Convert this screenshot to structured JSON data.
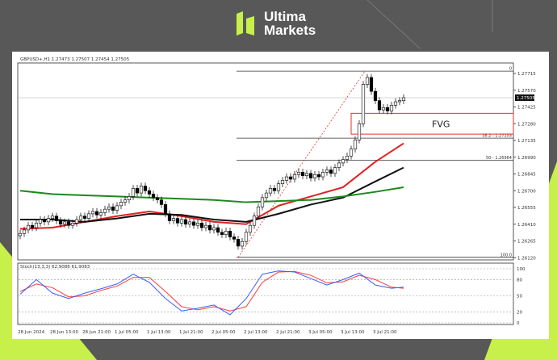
{
  "brand": {
    "line1": "Ultima",
    "line2": "Markets",
    "accent": "#c8f04a"
  },
  "chart_data": {
    "type": "candlestick",
    "header": "GBPUSD+,H1  1.27473 1.27507 1.27454 1.27505",
    "time_labels": [
      "28 Jun 2024",
      "28 Jun 13:00",
      "28 Jun 21:00",
      "1 Jul 05:00",
      "1 Jul 13:00",
      "1 Jul 21:00",
      "2 Jul 05:00",
      "2 Jul 13:00",
      "2 Jul 21:00",
      "3 Jul 05:00",
      "3 Jul 13:00",
      "3 Jul 21:00"
    ],
    "price_ticks": [
      "1.27715",
      "1.27570",
      "1.27425",
      "1.27280",
      "1.27135",
      "1.26990",
      "1.26845",
      "1.26700",
      "1.26555",
      "1.26410",
      "1.26265",
      "1.26120"
    ],
    "ylim": [
      1.261,
      1.278
    ],
    "current_price": "1.27505",
    "closes": [
      1.2633,
      1.2636,
      1.264,
      1.2638,
      1.2642,
      1.2645,
      1.2643,
      1.2646,
      1.2648,
      1.2644,
      1.2641,
      1.2643,
      1.264,
      1.2642,
      1.2645,
      1.2648,
      1.2646,
      1.265,
      1.2652,
      1.2649,
      1.2651,
      1.2654,
      1.2656,
      1.2653,
      1.2657,
      1.266,
      1.2662,
      1.2665,
      1.2672,
      1.2668,
      1.2674,
      1.267,
      1.2667,
      1.2664,
      1.2662,
      1.2658,
      1.265,
      1.2644,
      1.2646,
      1.2642,
      1.2645,
      1.2641,
      1.2643,
      1.264,
      1.2642,
      1.2638,
      1.264,
      1.2636,
      1.2638,
      1.2634,
      1.2632,
      1.2635,
      1.263,
      1.2628,
      1.2622,
      1.2626,
      1.2634,
      1.264,
      1.2648,
      1.2656,
      1.2664,
      1.2668,
      1.2672,
      1.267,
      1.2676,
      1.2679,
      1.2682,
      1.268,
      1.2684,
      1.2686,
      1.2683,
      1.2685,
      1.2681,
      1.2684,
      1.2682,
      1.2686,
      1.2688,
      1.2685,
      1.269,
      1.2694,
      1.2697,
      1.27,
      1.2706,
      1.2714,
      1.2728,
      1.2762,
      1.2768,
      1.2756,
      1.2748,
      1.274,
      1.2742,
      1.2739,
      1.2744,
      1.2747,
      1.2748,
      1.27505
    ],
    "moving_averages": [
      {
        "color": "#e02020",
        "values": [
          1.2637,
          1.2638,
          1.2643,
          1.2648,
          1.2652,
          1.2648,
          1.2643,
          1.2641,
          1.2657,
          1.2665,
          1.2673,
          1.2695,
          1.2711
        ]
      },
      {
        "color": "#111111",
        "values": [
          1.2645,
          1.2645,
          1.2643,
          1.2646,
          1.265,
          1.2649,
          1.2645,
          1.2643,
          1.265,
          1.2658,
          1.2664,
          1.2678,
          1.269
        ]
      },
      {
        "color": "#1a8a1a",
        "values": [
          1.267,
          1.2667,
          1.2666,
          1.2665,
          1.2664,
          1.2663,
          1.2662,
          1.266,
          1.2661,
          1.2662,
          1.2665,
          1.2669,
          1.2673
        ]
      }
    ],
    "fibonacci": {
      "levels": [
        {
          "label": "0",
          "price": 1.27735
        },
        {
          "label": "38.2 - 1.27155",
          "price": 1.27155
        },
        {
          "label": "50 - 1.26964",
          "price": 1.26964
        },
        {
          "label": "100.0",
          "price": 1.26123
        }
      ]
    },
    "fvg": {
      "label": "FVG",
      "top": 1.2737,
      "bottom": 1.2719,
      "color": "#e03030"
    },
    "stochastic": {
      "label": "Stoch(13,3,3) 62.9086 61.9083",
      "levels": [
        "100",
        "80",
        "50",
        "20",
        "0"
      ],
      "main": [
        53,
        80,
        55,
        45,
        55,
        63,
        72,
        90,
        75,
        45,
        22,
        27,
        33,
        15,
        45,
        90,
        96,
        94,
        82,
        70,
        80,
        92,
        70,
        64,
        66
      ],
      "signal": [
        58,
        72,
        65,
        48,
        50,
        60,
        68,
        84,
        84,
        58,
        30,
        24,
        30,
        22,
        30,
        75,
        94,
        95,
        88,
        74,
        76,
        88,
        80,
        66,
        64
      ],
      "main_color": "#3a5cff",
      "signal_color": "#ff3a3a"
    }
  }
}
